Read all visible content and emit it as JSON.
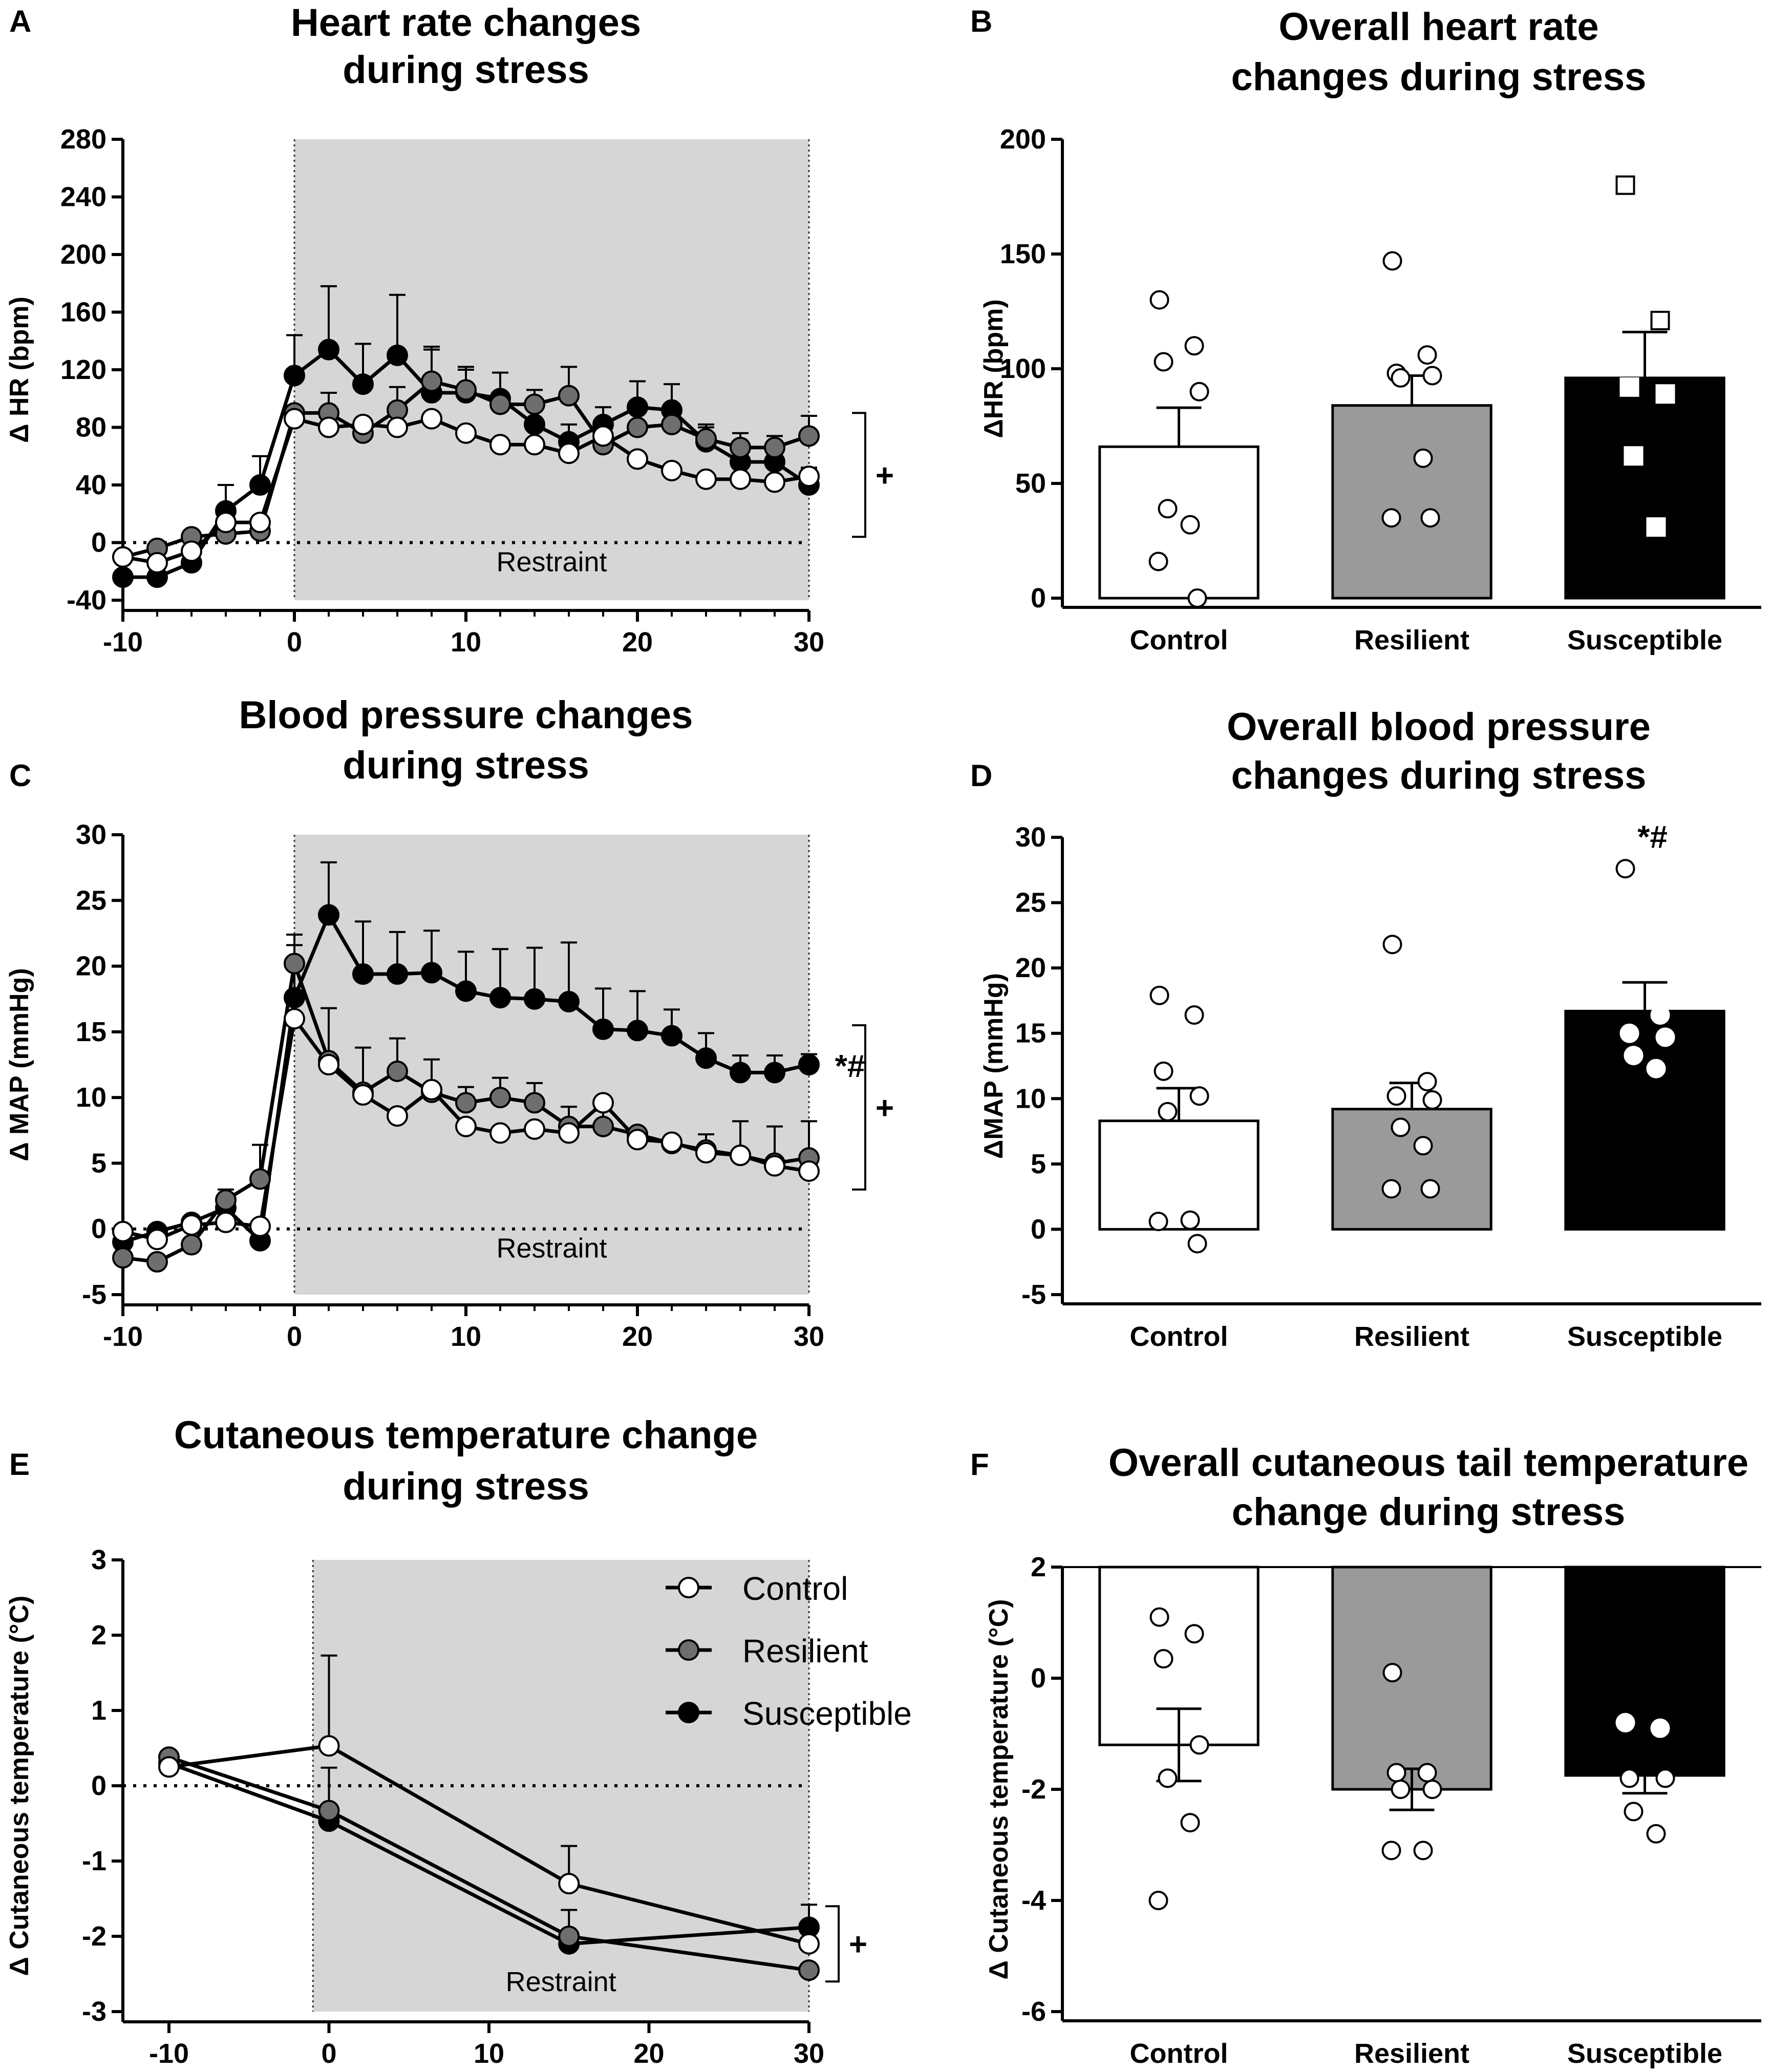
{
  "panels": {
    "A": {
      "letter": "A",
      "title_lines": [
        "Heart rate changes",
        "during stress"
      ],
      "ylabel": "Δ HR (bpm)",
      "shade_label": "Restraint",
      "bracket_symbol": "+",
      "sig_symbol": ""
    },
    "B": {
      "letter": "B",
      "title_lines": [
        "Overall heart rate",
        "changes during stress"
      ],
      "ylabel": "ΔHR (bpm)",
      "sig_symbol": ""
    },
    "C": {
      "letter": "C",
      "title_lines": [
        "Blood pressure changes",
        "during stress"
      ],
      "ylabel": "Δ MAP (mmHg)",
      "shade_label": "Restraint",
      "bracket_symbol": "+",
      "sig_symbol": "*#"
    },
    "D": {
      "letter": "D",
      "title_lines": [
        "Overall blood pressure",
        "changes during stress"
      ],
      "ylabel": "ΔMAP (mmHg)",
      "sig_symbol": "*#"
    },
    "E": {
      "letter": "E",
      "title_lines": [
        "Cutaneous temperature change",
        "during stress"
      ],
      "ylabel": "Δ Cutaneous temperature (°C)",
      "shade_label": "Restraint",
      "bracket_symbol": "+",
      "sig_symbol": "",
      "legend": [
        "Control",
        "Resilient",
        "Susceptible"
      ]
    },
    "F": {
      "letter": "F",
      "title_lines": [
        "Overall cutaneous tail temperature",
        "change during stress"
      ],
      "ylabel": "Δ Cutaneous temperature (°C)",
      "sig_symbol": ""
    }
  },
  "colors": {
    "control": "#ffffff",
    "resilient": "#6e6e6e",
    "susceptible": "#000000",
    "resilient_bar": "#9a9a9a",
    "shade": "#d6d6d6"
  },
  "chart_data": [
    {
      "panel": "A",
      "type": "line",
      "title": "Heart rate changes during stress",
      "xlabel": "",
      "ylabel": "Δ HR (bpm)",
      "xlim": [
        -10,
        30
      ],
      "ylim": [
        -40,
        280
      ],
      "xticks": [
        -10,
        0,
        10,
        20,
        30
      ],
      "yticks": [
        -40,
        0,
        40,
        80,
        120,
        160,
        200,
        240,
        280
      ],
      "shaded_range": [
        0,
        30
      ],
      "annotation": "Restraint",
      "x": [
        -10,
        -8,
        -6,
        -4,
        -2,
        0,
        2,
        4,
        6,
        8,
        10,
        12,
        14,
        16,
        18,
        20,
        22,
        24,
        26,
        28,
        30
      ],
      "series": [
        {
          "name": "Control",
          "values": [
            -10,
            -14,
            -6,
            14,
            14,
            86,
            80,
            82,
            80,
            86,
            76,
            68,
            68,
            62,
            74,
            58,
            50,
            44,
            44,
            42,
            46
          ],
          "errors": [
            0,
            0,
            0,
            0,
            0,
            0,
            0,
            0,
            0,
            0,
            0,
            0,
            0,
            0,
            0,
            0,
            0,
            0,
            0,
            0,
            0
          ]
        },
        {
          "name": "Resilient",
          "values": [
            -10,
            -4,
            4,
            6,
            8,
            90,
            90,
            76,
            92,
            112,
            106,
            96,
            96,
            102,
            68,
            80,
            82,
            72,
            66,
            66,
            74
          ],
          "errors": [
            0,
            0,
            0,
            0,
            0,
            0,
            14,
            0,
            16,
            24,
            14,
            8,
            10,
            20,
            0,
            12,
            14,
            8,
            10,
            8,
            14
          ]
        },
        {
          "name": "Susceptible",
          "values": [
            -24,
            -24,
            -14,
            22,
            40,
            116,
            134,
            110,
            130,
            104,
            104,
            100,
            82,
            70,
            82,
            94,
            92,
            70,
            56,
            56,
            40
          ],
          "errors": [
            0,
            0,
            0,
            18,
            20,
            28,
            44,
            28,
            42,
            30,
            18,
            18,
            14,
            12,
            12,
            18,
            18,
            12,
            12,
            12,
            12
          ]
        }
      ],
      "significance": "+"
    },
    {
      "panel": "B",
      "type": "bar",
      "title": "Overall heart rate changes during stress",
      "xlabel": "",
      "ylabel": "ΔHR (bpm)",
      "ylim": [
        0,
        200
      ],
      "yticks": [
        0,
        50,
        100,
        150,
        200
      ],
      "categories": [
        "Control",
        "Resilient",
        "Susceptible"
      ],
      "values": [
        66,
        84,
        96
      ],
      "errors": [
        17,
        13,
        20
      ],
      "points": [
        [
          130,
          110,
          103,
          90,
          39,
          32,
          16,
          0
        ],
        [
          147,
          106,
          98,
          97,
          96,
          61,
          35,
          35
        ],
        [
          180,
          121,
          92,
          89,
          62,
          31
        ]
      ]
    },
    {
      "panel": "C",
      "type": "line",
      "title": "Blood pressure changes during stress",
      "xlabel": "",
      "ylabel": "Δ MAP (mmHg)",
      "xlim": [
        -10,
        30
      ],
      "ylim": [
        -5,
        30
      ],
      "xticks": [
        -10,
        0,
        10,
        20,
        30
      ],
      "yticks": [
        -5,
        0,
        5,
        10,
        15,
        20,
        25,
        30
      ],
      "shaded_range": [
        0,
        30
      ],
      "annotation": "Restraint",
      "x": [
        -10,
        -8,
        -6,
        -4,
        -2,
        0,
        2,
        4,
        6,
        8,
        10,
        12,
        14,
        16,
        18,
        20,
        22,
        24,
        26,
        28,
        30
      ],
      "series": [
        {
          "name": "Control",
          "values": [
            -0.2,
            -0.8,
            0.3,
            0.5,
            0.2,
            16.0,
            12.5,
            10.2,
            8.6,
            10.6,
            7.8,
            7.3,
            7.6,
            7.3,
            9.6,
            6.8,
            6.6,
            5.8,
            5.6,
            4.8,
            4.4
          ],
          "errors": [
            0,
            0,
            0,
            0,
            0,
            0,
            0,
            0,
            0,
            0,
            0,
            0,
            0,
            0,
            0,
            0,
            0,
            0,
            0,
            0,
            0
          ]
        },
        {
          "name": "Resilient",
          "values": [
            -2.2,
            -2.5,
            -1.2,
            2.2,
            3.8,
            20.2,
            12.8,
            10.4,
            12.0,
            10.4,
            9.6,
            10.0,
            9.6,
            7.8,
            7.8,
            7.2,
            6.5,
            6.0,
            5.6,
            5.0,
            5.4
          ],
          "errors": [
            0,
            0,
            0,
            0.8,
            2.6,
            2.2,
            4.0,
            3.4,
            2.5,
            2.5,
            1.2,
            1.5,
            1.5,
            1.5,
            1.2,
            0,
            0,
            1.2,
            2.6,
            2.8,
            2.8
          ]
        },
        {
          "name": "Susceptible",
          "values": [
            -1.0,
            -0.2,
            0.5,
            1.6,
            -0.9,
            17.6,
            23.9,
            19.4,
            19.4,
            19.5,
            18.1,
            17.6,
            17.5,
            17.3,
            15.2,
            15.1,
            14.7,
            13.0,
            11.9,
            11.9,
            12.5
          ],
          "errors": [
            0,
            0,
            0,
            0,
            0,
            4.0,
            4.0,
            4.0,
            3.2,
            3.2,
            3.0,
            3.7,
            3.9,
            4.5,
            3.1,
            3.0,
            2.0,
            1.9,
            1.3,
            1.3,
            0.8
          ]
        }
      ],
      "significance": "*#",
      "bracket": "+"
    },
    {
      "panel": "D",
      "type": "bar",
      "title": "Overall blood pressure changes during stress",
      "xlabel": "",
      "ylabel": "ΔMAP (mmHg)",
      "ylim": [
        -5,
        30
      ],
      "yticks": [
        -5,
        0,
        5,
        10,
        15,
        20,
        25,
        30
      ],
      "categories": [
        "Control",
        "Resilient",
        "Susceptible"
      ],
      "values": [
        8.3,
        9.2,
        16.7
      ],
      "errors": [
        2.5,
        2.0,
        2.2
      ],
      "points": [
        [
          17.9,
          16.4,
          12.1,
          10.2,
          9.0,
          0.7,
          0.6,
          -1.1
        ],
        [
          21.8,
          11.3,
          10.2,
          9.9,
          7.8,
          6.4,
          3.1,
          3.1
        ],
        [
          27.6,
          16.4,
          15.0,
          14.7,
          13.3,
          12.3
        ]
      ],
      "significance": "*#"
    },
    {
      "panel": "E",
      "type": "line",
      "title": "Cutaneous temperature change during stress",
      "xlabel": "",
      "ylabel": "Δ Cutaneous temperature (°C)",
      "xlim": [
        -10,
        30
      ],
      "ylim": [
        -3,
        3
      ],
      "xticks": [
        -10,
        0,
        10,
        20,
        30
      ],
      "yticks": [
        -3,
        -2,
        -1,
        0,
        1,
        2,
        3
      ],
      "shaded_range": [
        -1,
        30
      ],
      "annotation": "Restraint",
      "x": [
        -10,
        0,
        15,
        30
      ],
      "series": [
        {
          "name": "Control",
          "values": [
            0.25,
            0.53,
            -1.3,
            -2.1
          ],
          "errors": [
            0,
            1.2,
            0.5,
            0
          ]
        },
        {
          "name": "Resilient",
          "values": [
            0.38,
            -0.33,
            -2.0,
            -2.45
          ],
          "errors": [
            0,
            0.57,
            0.35,
            0
          ]
        },
        {
          "name": "Susceptible",
          "values": [
            0.3,
            -0.47,
            -2.1,
            -1.88
          ],
          "errors": [
            0,
            0,
            0,
            0.3
          ]
        }
      ],
      "legend": [
        "Control",
        "Resilient",
        "Susceptible"
      ],
      "significance": "+"
    },
    {
      "panel": "F",
      "type": "bar",
      "title": "Overall cutaneous tail temperature change during stress",
      "xlabel": "",
      "ylabel": "Δ Cutaneous temperature (°C)",
      "ylim": [
        -6,
        2
      ],
      "yticks": [
        -6,
        -4,
        -2,
        0,
        2
      ],
      "categories": [
        "Control",
        "Resilient",
        "Susceptible"
      ],
      "values": [
        -1.2,
        -2.0,
        -1.75
      ],
      "errors": [
        0.65,
        0.37,
        0.32
      ],
      "points": [
        [
          1.1,
          0.8,
          0.35,
          -1.2,
          -1.8,
          -2.6,
          -4.0
        ],
        [
          0.1,
          -1.7,
          -1.7,
          -2.0,
          -2.0,
          -3.1,
          -3.1
        ],
        [
          -0.8,
          -0.9,
          -1.8,
          -1.8,
          -2.4,
          -2.8
        ]
      ]
    }
  ]
}
